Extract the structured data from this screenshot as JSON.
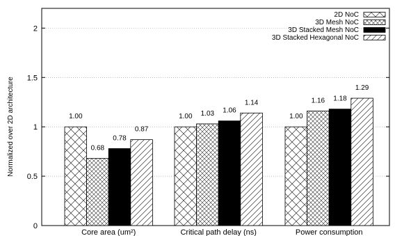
{
  "chart_data": {
    "type": "bar",
    "categories": [
      "Core area (um²)",
      "Critical path delay (ns)",
      "Power consumption"
    ],
    "series": [
      {
        "name": "2D NoC",
        "values": [
          1.0,
          1.0,
          1.0
        ],
        "labels": [
          "1.00",
          "1.00",
          "1.00"
        ],
        "pattern": "crosshatch"
      },
      {
        "name": "3D Mesh NoC",
        "values": [
          0.68,
          1.03,
          1.16
        ],
        "labels": [
          "0.68",
          "1.03",
          "1.16"
        ],
        "pattern": "fine-crosshatch"
      },
      {
        "name": "3D Stacked Mesh NoC",
        "values": [
          0.78,
          1.06,
          1.18
        ],
        "labels": [
          "0.78",
          "1.06",
          "1.18"
        ],
        "pattern": "solid-black"
      },
      {
        "name": "3D Stacked Hexagonal NoC",
        "values": [
          0.87,
          1.14,
          1.29
        ],
        "labels": [
          "0.87",
          "1.14",
          "1.29"
        ],
        "pattern": "diagonal"
      }
    ],
    "ylabel": "Normalized over 2D architecture",
    "ylim": [
      0,
      2.2
    ],
    "yticks": [
      0,
      0.5,
      1,
      1.5,
      2
    ],
    "ytick_labels": [
      "0",
      "0.5",
      "1",
      "1.5",
      "2"
    ],
    "grid": true,
    "legend_position": "top-right"
  }
}
